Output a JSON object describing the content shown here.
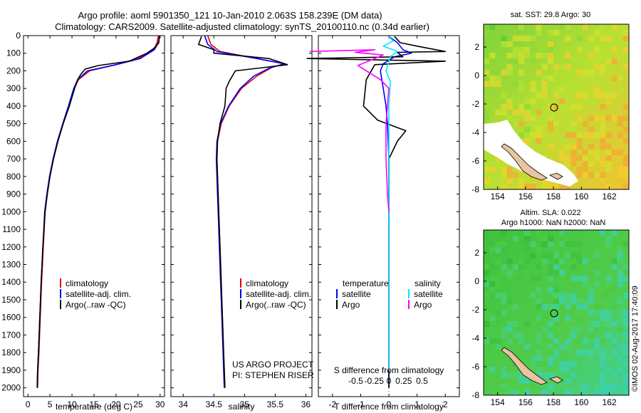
{
  "header": {
    "line1": "Argo profile: aoml 5901350_121 10-Jan-2010 2.063S 158.239E (DM data)",
    "line2": "Climatology: CARS2009. Satellite-adjusted climatology: synTS_20100110.nc (0.34d earlier)"
  },
  "colors": {
    "climatology": "#e00000",
    "satellite": "#0000ff",
    "argo": "#000000",
    "salinity_sat": "#00e5ff",
    "salinity_argo": "#ff00ff"
  },
  "chart_data": [
    {
      "type": "line",
      "id": "temperature",
      "xlabel": "temperature (deg C)",
      "xlim": [
        -1,
        31
      ],
      "ylim": [
        2050,
        0
      ],
      "xticks": [
        0,
        5,
        10,
        15,
        20,
        25,
        30
      ],
      "yticks": [
        0,
        100,
        200,
        300,
        400,
        500,
        600,
        700,
        800,
        900,
        1000,
        1100,
        1200,
        1300,
        1400,
        1500,
        1600,
        1700,
        1800,
        1900,
        2000
      ],
      "legend": [
        "climatology",
        "satellite-adj. clim.",
        "Argo(..raw -QC)"
      ],
      "series": [
        {
          "name": "climatology",
          "points": [
            [
              29.6,
              0
            ],
            [
              29.3,
              40
            ],
            [
              28.5,
              80
            ],
            [
              25,
              130
            ],
            [
              20,
              165
            ],
            [
              14,
              200
            ],
            [
              11.5,
              250
            ],
            [
              10.5,
              300
            ],
            [
              9.3,
              400
            ],
            [
              8,
              500
            ],
            [
              6.8,
              600
            ],
            [
              5.8,
              700
            ],
            [
              5,
              800
            ],
            [
              4.4,
              900
            ],
            [
              3.9,
              1000
            ],
            [
              3.5,
              1200
            ],
            [
              3.1,
              1400
            ],
            [
              2.8,
              1600
            ],
            [
              2.5,
              1800
            ],
            [
              2.3,
              1900
            ],
            [
              2.2,
              2000
            ]
          ]
        },
        {
          "name": "satellite-adj. clim.",
          "points": [
            [
              29.9,
              0
            ],
            [
              29.6,
              40
            ],
            [
              28.7,
              80
            ],
            [
              25.5,
              130
            ],
            [
              20,
              165
            ],
            [
              13.5,
              200
            ],
            [
              11.3,
              250
            ],
            [
              10.4,
              300
            ],
            [
              9.2,
              400
            ],
            [
              7.9,
              500
            ],
            [
              6.7,
              600
            ],
            [
              5.7,
              700
            ],
            [
              4.9,
              800
            ],
            [
              4.3,
              900
            ],
            [
              3.8,
              1000
            ],
            [
              3.4,
              1200
            ],
            [
              3,
              1400
            ],
            [
              2.7,
              1600
            ],
            [
              2.4,
              1800
            ],
            [
              2.2,
              1900
            ],
            [
              2.1,
              2000
            ]
          ]
        },
        {
          "name": "Argo(..raw -QC)",
          "points": [
            [
              29.8,
              5
            ],
            [
              29.7,
              40
            ],
            [
              29,
              65
            ],
            [
              27,
              100
            ],
            [
              23,
              145
            ],
            [
              16,
              170
            ],
            [
              13,
              190
            ],
            [
              12,
              220
            ],
            [
              11.3,
              250
            ],
            [
              10.6,
              300
            ],
            [
              9.4,
              400
            ],
            [
              8,
              500
            ],
            [
              6.8,
              600
            ],
            [
              5.8,
              700
            ],
            [
              5,
              800
            ],
            [
              4.4,
              900
            ],
            [
              3.9,
              1000
            ],
            [
              3.4,
              1200
            ],
            [
              3,
              1400
            ],
            [
              2.7,
              1600
            ],
            [
              2.4,
              1800
            ],
            [
              2.2,
              1900
            ],
            [
              2.1,
              2000
            ]
          ]
        }
      ]
    },
    {
      "type": "line",
      "id": "salinity",
      "xlabel": "salinity",
      "xlim": [
        33.8,
        36.1
      ],
      "ylim": [
        2050,
        0
      ],
      "xticks": [
        34,
        34.5,
        35,
        35.5,
        36
      ],
      "legend": [
        "climatology",
        "satellite-adj. clim.",
        "Argo(..raw -QC)"
      ],
      "series": [
        {
          "name": "climatology",
          "points": [
            [
              34.4,
              0
            ],
            [
              34.45,
              50
            ],
            [
              34.6,
              90
            ],
            [
              35.2,
              130
            ],
            [
              35.65,
              160
            ],
            [
              35.45,
              180
            ],
            [
              35.2,
              230
            ],
            [
              34.95,
              300
            ],
            [
              34.75,
              400
            ],
            [
              34.62,
              500
            ],
            [
              34.56,
              600
            ],
            [
              34.55,
              700
            ],
            [
              34.56,
              800
            ],
            [
              34.57,
              900
            ],
            [
              34.58,
              1000
            ],
            [
              34.6,
              1200
            ],
            [
              34.62,
              1400
            ],
            [
              34.64,
              1600
            ],
            [
              34.66,
              1800
            ],
            [
              34.67,
              1900
            ],
            [
              34.68,
              2000
            ]
          ]
        },
        {
          "name": "satellite-adj. clim.",
          "points": [
            [
              34.35,
              0
            ],
            [
              34.4,
              50
            ],
            [
              34.55,
              90
            ],
            [
              35.2,
              130
            ],
            [
              35.65,
              160
            ],
            [
              35.4,
              185
            ],
            [
              35.15,
              230
            ],
            [
              34.93,
              300
            ],
            [
              34.74,
              400
            ],
            [
              34.61,
              500
            ],
            [
              34.55,
              600
            ],
            [
              34.54,
              700
            ],
            [
              34.55,
              800
            ],
            [
              34.56,
              900
            ],
            [
              34.57,
              1000
            ],
            [
              34.59,
              1200
            ],
            [
              34.61,
              1400
            ],
            [
              34.63,
              1600
            ],
            [
              34.65,
              1800
            ],
            [
              34.66,
              1900
            ],
            [
              34.67,
              2000
            ]
          ]
        },
        {
          "name": "Argo(..raw -QC)",
          "points": [
            [
              34.3,
              5
            ],
            [
              34.25,
              50
            ],
            [
              34.5,
              80
            ],
            [
              34.5,
              100
            ],
            [
              35.4,
              130
            ],
            [
              35.7,
              165
            ],
            [
              35.35,
              180
            ],
            [
              34.85,
              200
            ],
            [
              34.75,
              260
            ],
            [
              34.7,
              300
            ],
            [
              34.68,
              400
            ],
            [
              34.6,
              500
            ],
            [
              34.56,
              600
            ],
            [
              34.55,
              700
            ],
            [
              34.56,
              800
            ],
            [
              34.57,
              900
            ],
            [
              34.58,
              1000
            ],
            [
              34.6,
              1200
            ],
            [
              34.62,
              1400
            ],
            [
              34.64,
              1600
            ],
            [
              34.66,
              1800
            ],
            [
              34.67,
              1900
            ],
            [
              34.68,
              2000
            ]
          ]
        }
      ],
      "annotation": [
        "US ARGO PROJECT",
        "PI: STEPHEN RISER"
      ]
    },
    {
      "type": "line",
      "id": "differences",
      "xlabel": "T difference from climatology",
      "top_axis_label": "S difference from climatology",
      "xlim": [
        -2.5,
        2.5
      ],
      "ylim": [
        2050,
        0
      ],
      "xticks": [
        -2,
        -1,
        0,
        1,
        2
      ],
      "top_ticks": [
        "-0.5",
        "-0.25",
        "0",
        "0.25",
        "0.5"
      ],
      "legend_headers": [
        "temperature",
        "salinity"
      ],
      "legend": [
        "satellite",
        "Argo",
        "satellite",
        "Argo"
      ],
      "series": [
        {
          "name": "temperature satellite",
          "points": [
            [
              0,
              5
            ],
            [
              0.3,
              40
            ],
            [
              0.5,
              80
            ],
            [
              0.8,
              100
            ],
            [
              0.2,
              120
            ],
            [
              -0.2,
              160
            ],
            [
              -0.3,
              200
            ],
            [
              -0.2,
              300
            ],
            [
              -0.1,
              400
            ],
            [
              -0.05,
              500
            ],
            [
              0,
              700
            ],
            [
              0,
              1000
            ],
            [
              0,
              1500
            ],
            [
              0,
              2000
            ]
          ]
        },
        {
          "name": "temperature Argo",
          "points": [
            [
              0.2,
              5
            ],
            [
              0.4,
              40
            ],
            [
              1,
              60
            ],
            [
              2,
              90
            ],
            [
              0.3,
              95
            ],
            [
              0.5,
              120
            ],
            [
              -2.9,
              130
            ],
            [
              2,
              145
            ],
            [
              -0.5,
              165
            ],
            [
              -0.8,
              250
            ],
            [
              -0.9,
              400
            ],
            [
              -0.4,
              480
            ],
            [
              0.6,
              540
            ],
            [
              0.3,
              600
            ],
            [
              0,
              700
            ],
            [
              0,
              900
            ],
            [
              0,
              1100
            ],
            [
              0,
              1500
            ],
            [
              0,
              2000
            ]
          ]
        },
        {
          "name": "salinity satellite",
          "points": [
            [
              0,
              5
            ],
            [
              0.15,
              30
            ],
            [
              -0.2,
              60
            ],
            [
              0.3,
              90
            ],
            [
              0.05,
              120
            ],
            [
              -0.1,
              200
            ],
            [
              0.05,
              260
            ],
            [
              0,
              400
            ],
            [
              0,
              700
            ],
            [
              0,
              1000
            ],
            [
              0,
              1500
            ],
            [
              0,
              1900
            ]
          ]
        },
        {
          "name": "salinity Argo",
          "points": [
            [
              -2.8,
              90
            ],
            [
              -0.5,
              80
            ],
            [
              -1.2,
              95
            ],
            [
              -0.2,
              110
            ],
            [
              -0.8,
              150
            ],
            [
              -1.1,
              170
            ],
            [
              -0.3,
              250
            ],
            [
              0,
              300
            ],
            [
              -0.1,
              500
            ],
            [
              -0.1,
              700
            ],
            [
              -0.05,
              900
            ],
            [
              0,
              1000
            ]
          ]
        }
      ]
    },
    {
      "type": "heatmap",
      "id": "sst_map",
      "title": "sat. SST: 29.8 Argo: 30",
      "xticks": [
        154,
        156,
        158,
        160,
        162
      ],
      "yticks": [
        2,
        0,
        -2,
        -4,
        -6,
        -8
      ],
      "xlim": [
        153,
        163.4
      ],
      "ylim": [
        -8,
        3.6
      ],
      "argo_position": [
        158.239,
        -2.063
      ]
    },
    {
      "type": "heatmap",
      "id": "sla_map",
      "title_lines": [
        "Altim. SLA: 0.022",
        "Argo h1000: NaN h2000: NaN"
      ],
      "xticks": [
        154,
        156,
        158,
        160,
        162
      ],
      "yticks": [
        2,
        0,
        -2,
        -4,
        -6,
        -8
      ],
      "xlim": [
        153,
        163.4
      ],
      "ylim": [
        -8,
        3.6
      ],
      "argo_position": [
        158.239,
        -2.063
      ]
    }
  ],
  "footer": {
    "credit": "©IMOS 02-Aug-2017 17:40:09"
  }
}
